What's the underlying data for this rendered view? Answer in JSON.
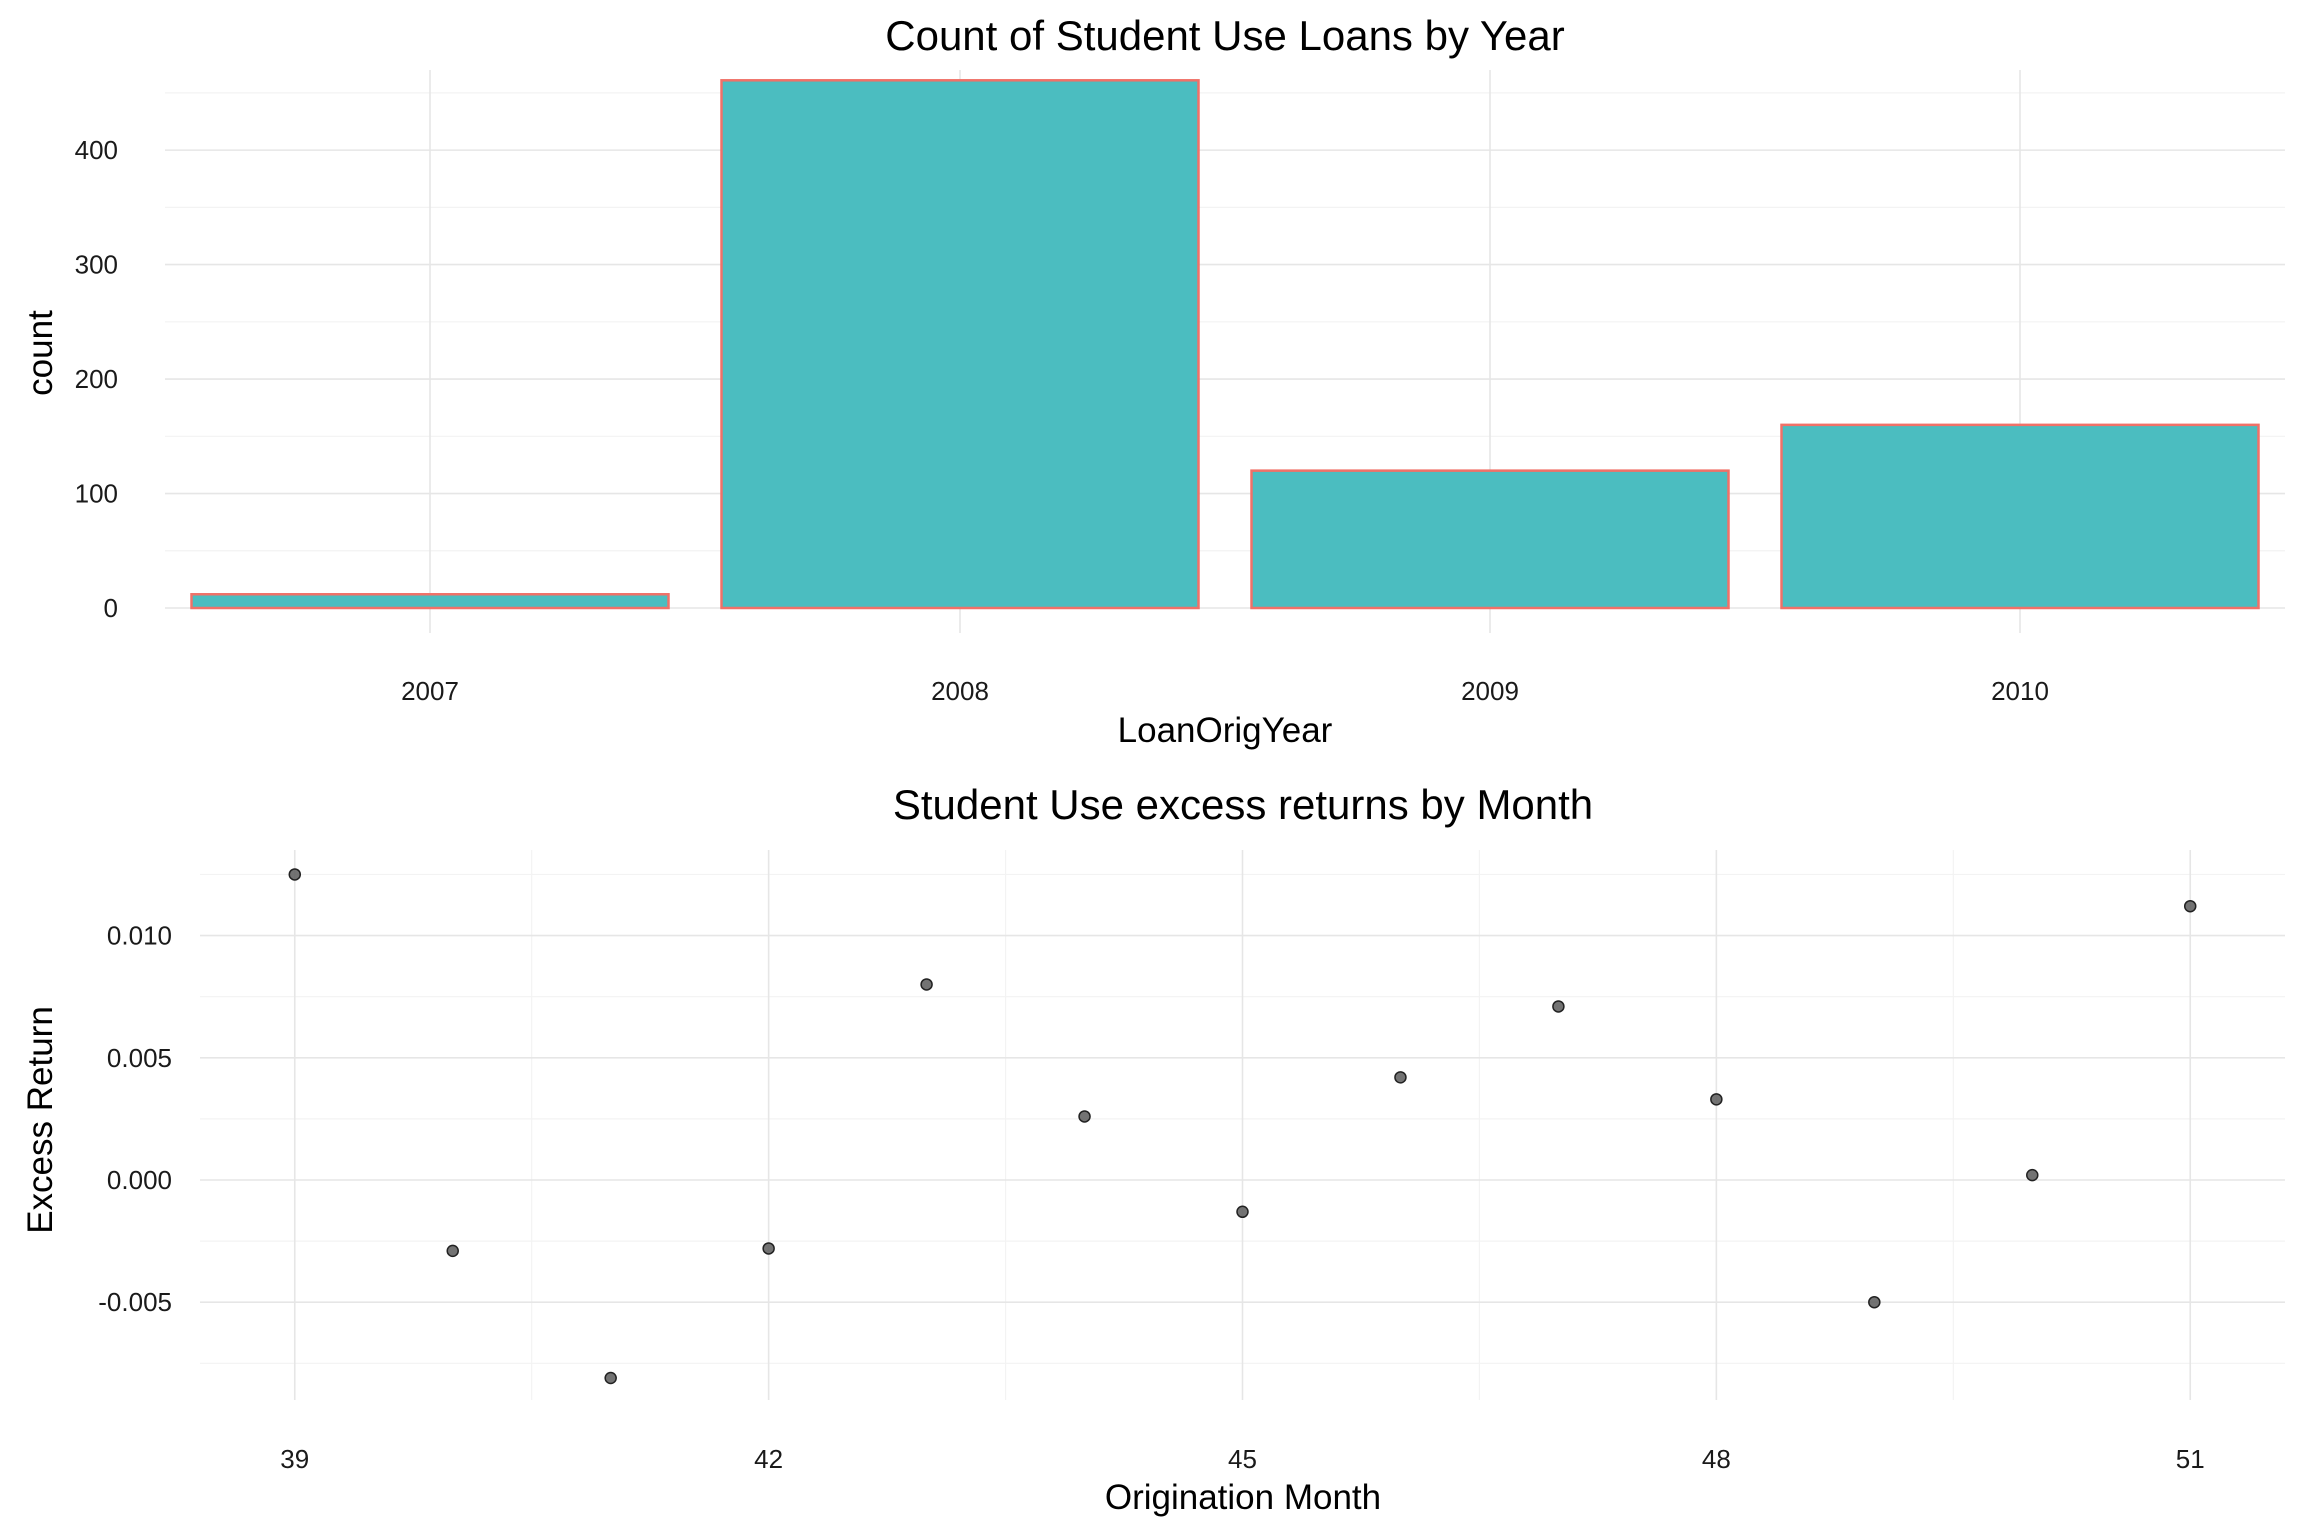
{
  "colors": {
    "bar_fill": "#4BBDC0",
    "bar_stroke": "#F07168",
    "point_fill": "#5a5a5a",
    "point_stroke": "#222222",
    "grid_major": "#e6e6e6",
    "grid_minor": "#f3f3f3"
  },
  "chart_data": [
    {
      "type": "bar",
      "title": "Count of Student Use Loans by Year",
      "xlabel": "LoanOrigYear",
      "ylabel": "count",
      "categories": [
        "2007",
        "2008",
        "2009",
        "2010"
      ],
      "values": [
        12,
        461,
        120,
        160
      ],
      "ylim": [
        0,
        470
      ],
      "yticks": [
        0,
        100,
        200,
        300,
        400
      ],
      "ytick_labels": [
        "0",
        "100",
        "200",
        "300",
        "400"
      ],
      "grid": true
    },
    {
      "type": "scatter",
      "title": "Student Use excess returns by Month",
      "xlabel": "Origination Month",
      "ylabel": "Excess Return",
      "x": [
        39,
        40,
        41,
        42,
        43,
        44,
        45,
        46,
        47,
        48,
        49,
        50,
        51
      ],
      "y": [
        0.0125,
        -0.0029,
        -0.0081,
        -0.0028,
        0.008,
        0.0026,
        -0.0013,
        0.0042,
        0.0071,
        0.0033,
        -0.005,
        0.0002,
        0.0112
      ],
      "xlim": [
        38.4,
        51.6
      ],
      "ylim": [
        -0.009,
        0.0135
      ],
      "xticks": [
        39,
        42,
        45,
        48,
        51
      ],
      "xtick_labels": [
        "39",
        "42",
        "45",
        "48",
        "51"
      ],
      "yticks": [
        -0.005,
        0.0,
        0.005,
        0.01
      ],
      "ytick_labels": [
        "-0.005",
        "0.000",
        "0.005",
        "0.010"
      ],
      "grid": true
    }
  ]
}
